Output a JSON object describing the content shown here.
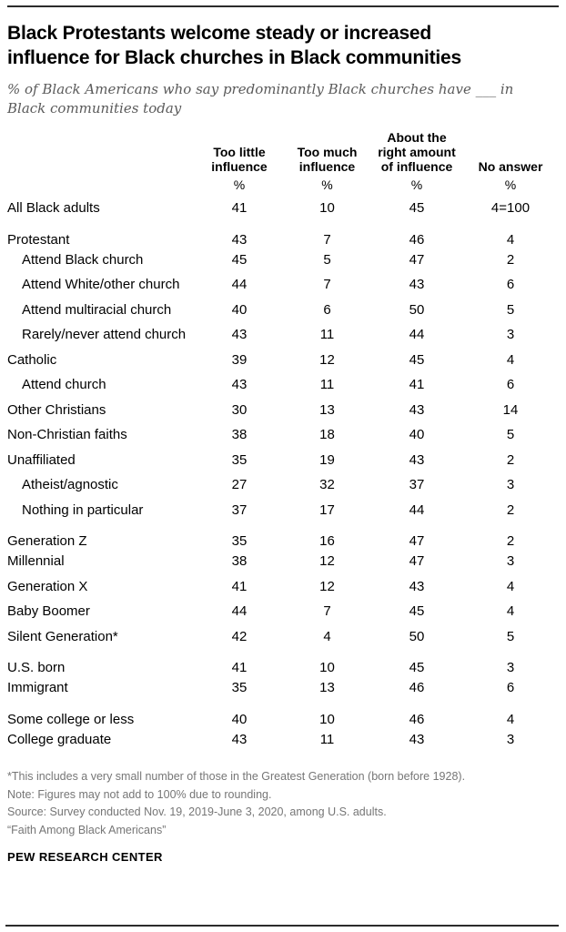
{
  "colors": {
    "text": "#000000",
    "subtitle_gray": "#5a5a5a",
    "footnote_gray": "#767676",
    "rule": "#2b2b2b",
    "background": "#ffffff"
  },
  "header": {
    "title": "Black Protestants welcome steady or increased\ninfluence for Black churches in Black communities",
    "subtitle": "% of Black Americans who say predominantly Black churches have ___ in\nBlack communities today"
  },
  "chart_data": {
    "type": "table",
    "title": "Black Protestants welcome steady or increased influence for Black churches in Black communities",
    "subtitle": "% of Black Americans who say predominantly Black churches have ___ in Black communities today",
    "columns": [
      "Too little\ninfluence",
      "Too much\ninfluence",
      "About the\nright amount\nof influence",
      "No answer"
    ],
    "unit_row": [
      "%",
      "%",
      "%",
      "%"
    ],
    "sections": [
      {
        "rows": [
          {
            "label": "All Black adults",
            "indent": false,
            "values": [
              "41",
              "10",
              "45",
              "4=100"
            ]
          }
        ]
      },
      {
        "rows": [
          {
            "label": "Protestant",
            "indent": false,
            "values": [
              "43",
              "7",
              "46",
              "4"
            ]
          },
          {
            "label": "Attend Black church",
            "indent": true,
            "values": [
              "45",
              "5",
              "47",
              "2"
            ]
          },
          {
            "label": "Attend White/other church",
            "indent": true,
            "values": [
              "44",
              "7",
              "43",
              "6"
            ]
          },
          {
            "label": "Attend multiracial church",
            "indent": true,
            "values": [
              "40",
              "6",
              "50",
              "5"
            ]
          },
          {
            "label": "Rarely/never attend church",
            "indent": true,
            "values": [
              "43",
              "11",
              "44",
              "3"
            ]
          },
          {
            "label": "Catholic",
            "indent": false,
            "values": [
              "39",
              "12",
              "45",
              "4"
            ]
          },
          {
            "label": "Attend church",
            "indent": true,
            "values": [
              "43",
              "11",
              "41",
              "6"
            ]
          },
          {
            "label": "Other Christians",
            "indent": false,
            "values": [
              "30",
              "13",
              "43",
              "14"
            ]
          },
          {
            "label": "Non-Christian faiths",
            "indent": false,
            "values": [
              "38",
              "18",
              "40",
              "5"
            ]
          },
          {
            "label": "Unaffiliated",
            "indent": false,
            "values": [
              "35",
              "19",
              "43",
              "2"
            ]
          },
          {
            "label": "Atheist/agnostic",
            "indent": true,
            "values": [
              "27",
              "32",
              "37",
              "3"
            ]
          },
          {
            "label": "Nothing in particular",
            "indent": true,
            "values": [
              "37",
              "17",
              "44",
              "2"
            ]
          }
        ]
      },
      {
        "rows": [
          {
            "label": "Generation Z",
            "indent": false,
            "values": [
              "35",
              "16",
              "47",
              "2"
            ]
          },
          {
            "label": "Millennial",
            "indent": false,
            "values": [
              "38",
              "12",
              "47",
              "3"
            ]
          },
          {
            "label": "Generation X",
            "indent": false,
            "values": [
              "41",
              "12",
              "43",
              "4"
            ]
          },
          {
            "label": "Baby Boomer",
            "indent": false,
            "values": [
              "44",
              "7",
              "45",
              "4"
            ]
          },
          {
            "label": "Silent Generation*",
            "indent": false,
            "values": [
              "42",
              "4",
              "50",
              "5"
            ]
          }
        ]
      },
      {
        "rows": [
          {
            "label": "U.S. born",
            "indent": false,
            "values": [
              "41",
              "10",
              "45",
              "3"
            ]
          },
          {
            "label": "Immigrant",
            "indent": false,
            "values": [
              "35",
              "13",
              "46",
              "6"
            ]
          }
        ]
      },
      {
        "rows": [
          {
            "label": "Some college or less",
            "indent": false,
            "values": [
              "40",
              "10",
              "46",
              "4"
            ]
          },
          {
            "label": "College graduate",
            "indent": false,
            "values": [
              "43",
              "11",
              "43",
              "3"
            ]
          }
        ]
      }
    ]
  },
  "footer": {
    "footnote": "*This includes a very small number of those in the Greatest Generation (born before 1928).",
    "note": "Note: Figures may not add to 100% due to rounding.",
    "source": "Source: Survey conducted Nov. 19, 2019-June 3, 2020, among U.S. adults.",
    "report": "“Faith Among Black Americans”",
    "brand": "PEW RESEARCH CENTER"
  }
}
